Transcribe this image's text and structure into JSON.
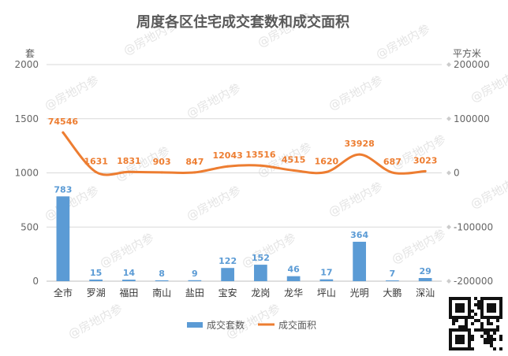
{
  "watermark": "@房地内参",
  "chart_data": {
    "type": "bar",
    "title": "周度各区住宅成交套数和成交面积",
    "categories": [
      "全市",
      "罗湖",
      "福田",
      "南山",
      "盐田",
      "宝安",
      "龙岗",
      "龙华",
      "坪山",
      "光明",
      "大鹏",
      "深汕"
    ],
    "ylabel_left": "套",
    "ylabel_right": "平方米",
    "ylim_left": [
      0,
      2000
    ],
    "yticks_left": [
      0,
      500,
      1000,
      1500,
      2000
    ],
    "ylim_right": [
      -200000,
      200000
    ],
    "yticks_right": [
      "-200000",
      "-100000",
      "0",
      "100000",
      "200000"
    ],
    "grid": true,
    "legend_position": "bottom",
    "series": [
      {
        "name": "成交套数",
        "type": "bar",
        "axis": "left",
        "color": "#5b9bd5",
        "values": [
          783,
          15,
          14,
          8,
          9,
          122,
          152,
          46,
          17,
          364,
          7,
          29
        ]
      },
      {
        "name": "成交面积",
        "type": "line",
        "axis": "right",
        "color": "#ed7d31",
        "values": [
          74546,
          1631,
          1831,
          903,
          847,
          12043,
          13516,
          4515,
          1620,
          33928,
          687,
          3023
        ]
      }
    ]
  }
}
